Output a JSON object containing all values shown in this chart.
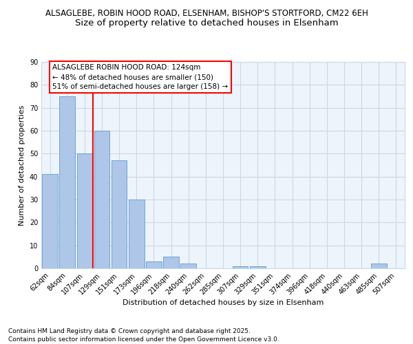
{
  "title_line1": "ALSAGLEBE, ROBIN HOOD ROAD, ELSENHAM, BISHOP'S STORTFORD, CM22 6EH",
  "title_line2": "Size of property relative to detached houses in Elsenham",
  "xlabel": "Distribution of detached houses by size in Elsenham",
  "ylabel": "Number of detached properties",
  "categories": [
    "62sqm",
    "84sqm",
    "107sqm",
    "129sqm",
    "151sqm",
    "173sqm",
    "196sqm",
    "218sqm",
    "240sqm",
    "262sqm",
    "285sqm",
    "307sqm",
    "329sqm",
    "351sqm",
    "374sqm",
    "396sqm",
    "418sqm",
    "440sqm",
    "463sqm",
    "485sqm",
    "507sqm"
  ],
  "values": [
    41,
    75,
    50,
    60,
    47,
    30,
    3,
    5,
    2,
    0,
    0,
    1,
    1,
    0,
    0,
    0,
    0,
    0,
    0,
    2,
    0
  ],
  "bar_color": "#aec6e8",
  "bar_edge_color": "#5b9bd5",
  "grid_color": "#c8d8e8",
  "background_color": "#eef4fb",
  "vline_x": 2.5,
  "vline_color": "red",
  "annotation_text": "ALSAGLEBE ROBIN HOOD ROAD: 124sqm\n← 48% of detached houses are smaller (150)\n51% of semi-detached houses are larger (158) →",
  "annotation_box_color": "white",
  "annotation_box_edge_color": "red",
  "ylim": [
    0,
    90
  ],
  "yticks": [
    0,
    10,
    20,
    30,
    40,
    50,
    60,
    70,
    80,
    90
  ],
  "footer_line1": "Contains HM Land Registry data © Crown copyright and database right 2025.",
  "footer_line2": "Contains public sector information licensed under the Open Government Licence v3.0.",
  "title_fontsize": 8.5,
  "subtitle_fontsize": 9.5,
  "axis_label_fontsize": 8,
  "tick_fontsize": 7,
  "annotation_fontsize": 7.5,
  "footer_fontsize": 6.5
}
